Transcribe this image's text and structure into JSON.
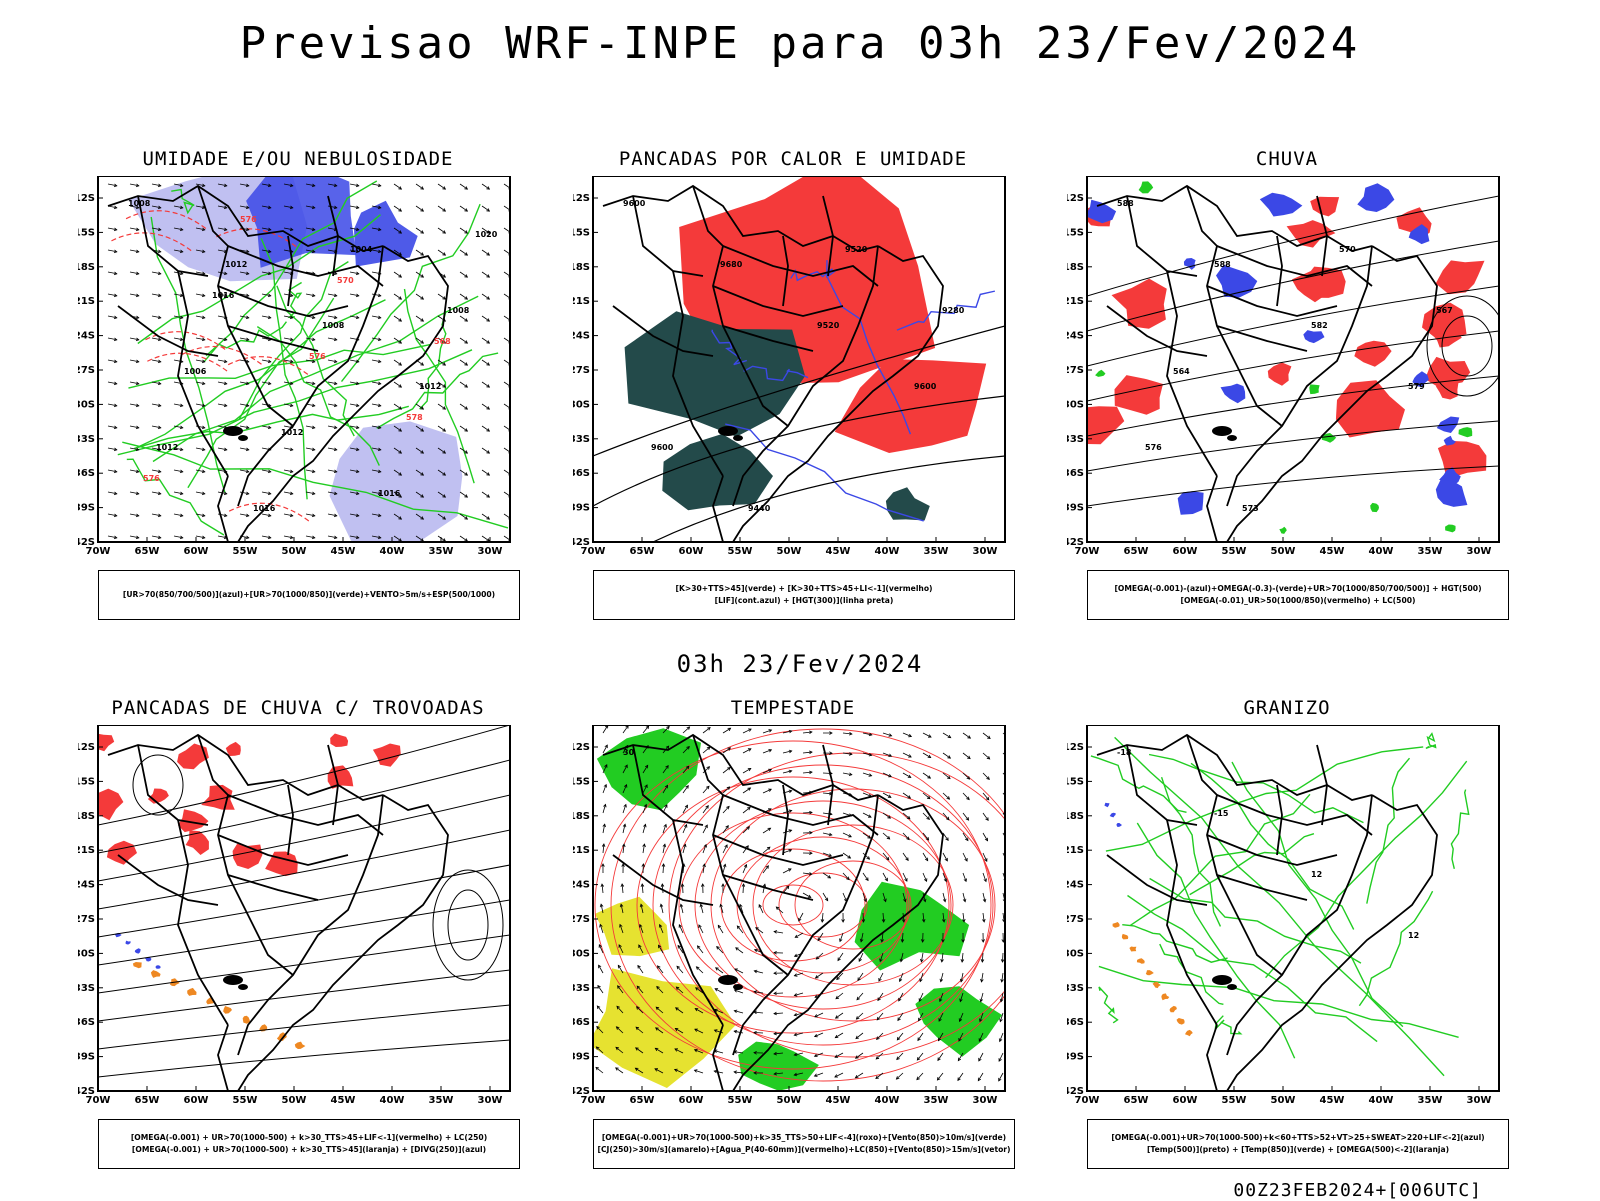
{
  "header": {
    "title": "Previsao WRF-INPE  para 03h 23/Fev/2024"
  },
  "mid_label": "03h 23/Fev/2024",
  "footer": {
    "run_id": "00Z23FEB2024+[006UTC]"
  },
  "axes": {
    "lat_labels": [
      "12S",
      "15S",
      "18S",
      "21S",
      "24S",
      "27S",
      "30S",
      "33S",
      "36S",
      "39S",
      "42S"
    ],
    "lon_labels": [
      "70W",
      "65W",
      "60W",
      "55W",
      "50W",
      "45W",
      "40W",
      "35W",
      "30W"
    ]
  },
  "colors": {
    "blue": "#3b48e6",
    "lightblue": "#b9b9f0",
    "green": "#22cc22",
    "red": "#f43a3a",
    "darkteal": "#234a4a",
    "orange": "#ee8822",
    "yellow": "#e6e230",
    "black": "#000000"
  },
  "panels": [
    {
      "id": "umidade",
      "title": "UMIDADE E/OU NEBULOSIDADE",
      "legend": [
        "[UR>70(850/700/500)](azul)+[UR>70(1000/850)](verde)+VENTO>5m/s+ESP(500/1000)"
      ],
      "contour_labels": [
        "1008",
        "1012",
        "1008",
        "1012",
        "1012",
        "1016",
        "1004",
        "1008",
        "1006",
        "1012",
        "1016",
        "1020",
        "1016",
        "576",
        "578",
        "576",
        "576",
        "570",
        "568"
      ]
    },
    {
      "id": "pancadas-calor",
      "title": "PANCADAS POR CALOR E UMIDADE",
      "legend": [
        "[K>30+TTS>45](verde)  +  [K>30+TTS>45+LI<-1](vermelho)",
        "[LIF](cont.azul)  +  [HGT(300)](linha preta)"
      ],
      "contour_labels": [
        "9600",
        "9680",
        "9520",
        "9600",
        "9600",
        "9440",
        "9520",
        "9280"
      ]
    },
    {
      "id": "chuva",
      "title": "CHUVA",
      "legend": [
        "[OMEGA(-0.001)-(azul)+OMEGA(-0.3)-(verde)+UR>70(1000/850/700/500)]  +  HGT(500)",
        "[OMEGA(-0.01)_UR>50(1000/850)(vermelho)  +  LC(500)"
      ],
      "contour_labels": [
        "588",
        "588",
        "582",
        "579",
        "576",
        "573",
        "570",
        "567",
        "564"
      ]
    },
    {
      "id": "pancadas-trovoadas",
      "title": "PANCADAS DE CHUVA C/ TROVOADAS",
      "legend": [
        "[OMEGA(-0.001)  +  UR>70(1000-500)  +  k>30_TTS>45+LIF<-1](vermelho)  +  LC(250)",
        "[OMEGA(-0.001)  +  UR>70(1000-500)  +  k>30_TTS>45](laranja)  +  [DIVG(250)](azul)"
      ],
      "contour_labels": []
    },
    {
      "id": "tempestade",
      "title": "TEMPESTADE",
      "legend": [
        "[OMEGA(-0.001)+UR>70(1000-500)+k>35_TTS>50+LIF<-4](roxo)+[Vento(850)>10m/s](verde)",
        "[CJ(250)>30m/s](amarelo)+[Agua_P(40-60mm)](vermelho)+LC(850)+[Vento(850)>15m/s](vetor)"
      ],
      "contour_labels": [
        "30"
      ]
    },
    {
      "id": "granizo",
      "title": "GRANIZO",
      "legend": [
        "[OMEGA(-0.001)+UR>70(1000-500)+k<60+TTS>52+VT>25+SWEAT>220+LIF<-2](azul)",
        "[Temp(500)](preto)  +  [Temp(850)](verde)  +  [OMEGA(500)<-2](laranja)"
      ],
      "contour_labels": [
        "-18",
        "-15",
        "12",
        "12"
      ]
    }
  ]
}
